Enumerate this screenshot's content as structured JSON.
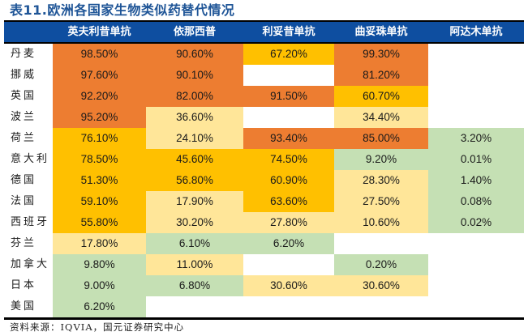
{
  "title": "表11.欧洲各国家生物类似药替代情况",
  "columns": [
    "",
    "英夫利昔单抗",
    "依那西普",
    "利妥昔单抗",
    "曲妥珠单抗",
    "阿达木单抗"
  ],
  "colors": {
    "header_bg": "#0e4ea0",
    "high": "#ed7d31",
    "mid": "#ffc000",
    "low": "#ffe699",
    "green": "#c5e0b4",
    "none": "#ffffff"
  },
  "rows": [
    {
      "country": "丹麦",
      "values": [
        "98.50%",
        "90.60%",
        "67.20%",
        "99.30%",
        ""
      ],
      "levels": [
        "high",
        "high",
        "mid",
        "high",
        "none"
      ]
    },
    {
      "country": "挪威",
      "values": [
        "97.60%",
        "90.10%",
        "",
        "81.20%",
        ""
      ],
      "levels": [
        "high",
        "high",
        "none",
        "high",
        "none"
      ]
    },
    {
      "country": "英国",
      "values": [
        "92.20%",
        "82.00%",
        "91.50%",
        "60.70%",
        ""
      ],
      "levels": [
        "high",
        "high",
        "high",
        "mid",
        "none"
      ]
    },
    {
      "country": "波兰",
      "values": [
        "95.20%",
        "36.60%",
        "",
        "34.40%",
        ""
      ],
      "levels": [
        "high",
        "low",
        "none",
        "low",
        "none"
      ]
    },
    {
      "country": "荷兰",
      "values": [
        "76.10%",
        "24.10%",
        "93.40%",
        "85.00%",
        "3.20%"
      ],
      "levels": [
        "mid",
        "low",
        "high",
        "high",
        "green"
      ]
    },
    {
      "country": "意大利",
      "values": [
        "78.50%",
        "45.60%",
        "74.50%",
        "9.20%",
        "0.01%"
      ],
      "levels": [
        "mid",
        "mid",
        "mid",
        "green",
        "green"
      ]
    },
    {
      "country": "德国",
      "values": [
        "51.30%",
        "56.80%",
        "60.90%",
        "28.30%",
        "1.40%"
      ],
      "levels": [
        "mid",
        "mid",
        "mid",
        "low",
        "green"
      ]
    },
    {
      "country": "法国",
      "values": [
        "59.10%",
        "17.90%",
        "63.60%",
        "27.50%",
        "0.08%"
      ],
      "levels": [
        "mid",
        "low",
        "mid",
        "low",
        "green"
      ]
    },
    {
      "country": "西班牙",
      "values": [
        "55.80%",
        "30.20%",
        "27.80%",
        "10.60%",
        "0.02%"
      ],
      "levels": [
        "mid",
        "low",
        "low",
        "low",
        "green"
      ]
    },
    {
      "country": "芬兰",
      "values": [
        "17.80%",
        "6.10%",
        "6.20%",
        "",
        ""
      ],
      "levels": [
        "low",
        "green",
        "green",
        "none",
        "none"
      ]
    },
    {
      "country": "加拿大",
      "values": [
        "9.80%",
        "11.00%",
        "",
        "0.20%",
        ""
      ],
      "levels": [
        "green",
        "low",
        "none",
        "green",
        "none"
      ]
    },
    {
      "country": "日本",
      "values": [
        "9.00%",
        "6.80%",
        "30.60%",
        "30.60%",
        ""
      ],
      "levels": [
        "green",
        "green",
        "low",
        "low",
        "none"
      ]
    },
    {
      "country": "美国",
      "values": [
        "6.20%",
        "",
        "",
        "",
        ""
      ],
      "levels": [
        "green",
        "none",
        "none",
        "none",
        "none"
      ]
    }
  ],
  "source": "资料来源：IQVIA，国元证券研究中心"
}
